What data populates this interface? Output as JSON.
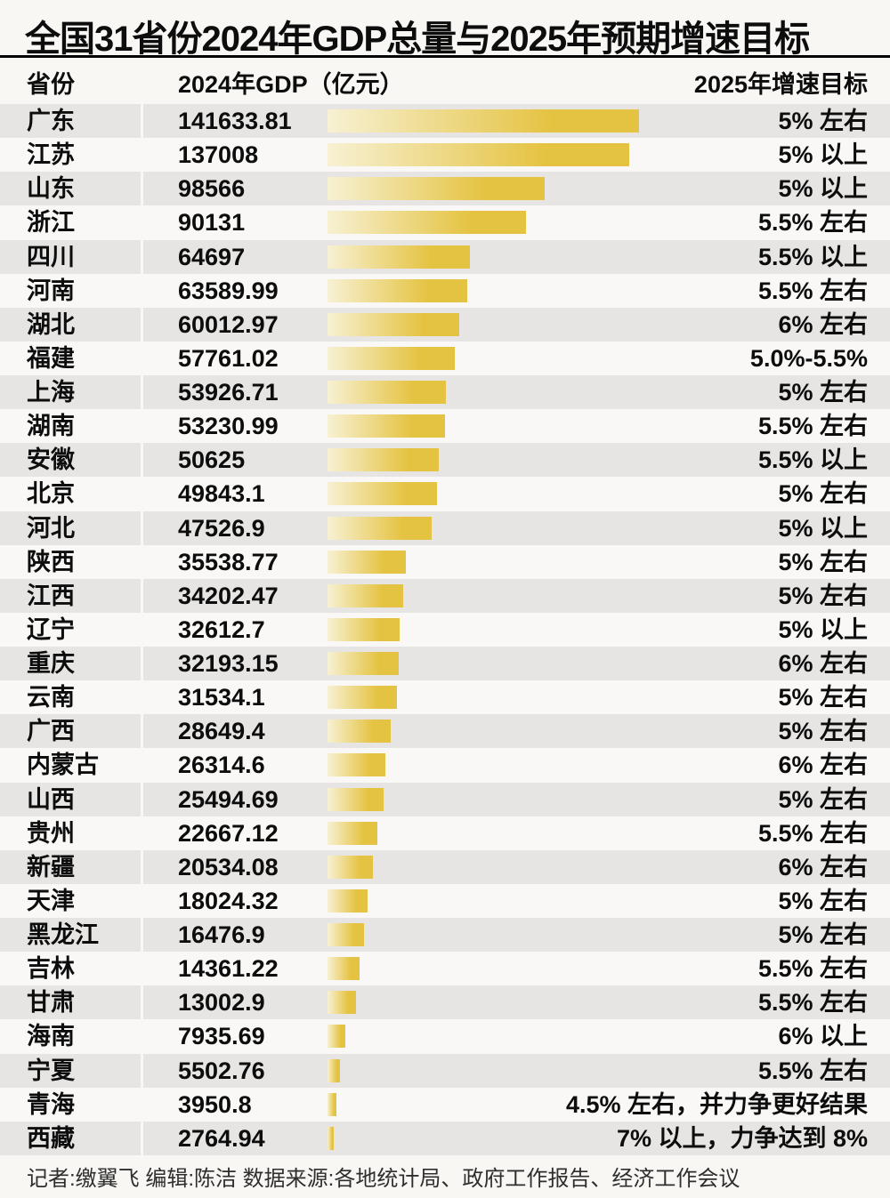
{
  "title": "全国31省份2024年GDP总量与2025年预期增速目标",
  "header": {
    "province": "省份",
    "gdp": "2024年GDP（亿元）",
    "target": "2025年增速目标"
  },
  "footer": {
    "credits": "记者:缴翼飞 编辑:陈洁 数据来源:各地统计局、政府工作报告、经济工作会议"
  },
  "colors": {
    "page_bg": "#F8F7F4",
    "row_odd": "#E6E5E3",
    "row_even": "#F9F8F6",
    "bar_gradient_start": "#F7F1D3",
    "bar_gradient_end": "#E5C342",
    "title_rule": "#000000",
    "text": "#0D0D0D",
    "footer_text": "#2E2E2E"
  },
  "chart_data": {
    "type": "bar",
    "orientation": "horizontal",
    "title": "全国31省份2024年GDP总量与2025年预期增速目标",
    "category_column_label": "省份",
    "value_column_label": "2024年GDP（亿元）",
    "target_column_label": "2025年增速目标",
    "xlim": [
      0,
      141633.81
    ],
    "grid": false,
    "legend": false,
    "categories": [
      "广东",
      "江苏",
      "山东",
      "浙江",
      "四川",
      "河南",
      "湖北",
      "福建",
      "上海",
      "湖南",
      "安徽",
      "北京",
      "河北",
      "陕西",
      "江西",
      "辽宁",
      "重庆",
      "云南",
      "广西",
      "内蒙古",
      "山西",
      "贵州",
      "新疆",
      "天津",
      "黑龙江",
      "吉林",
      "甘肃",
      "海南",
      "宁夏",
      "青海",
      "西藏"
    ],
    "values": [
      141633.81,
      137008,
      98566,
      90131,
      64697,
      63589.99,
      60012.97,
      57761.02,
      53926.71,
      53230.99,
      50625,
      49843.1,
      47526.9,
      35538.77,
      34202.47,
      32612.7,
      32193.15,
      31534.1,
      28649.4,
      26314.6,
      25494.69,
      22667.12,
      20534.08,
      18024.32,
      16476.9,
      14361.22,
      13002.9,
      7935.69,
      5502.76,
      3950.8,
      2764.94
    ],
    "targets": [
      "5% 左右",
      "5% 以上",
      "5% 以上",
      "5.5% 左右",
      "5.5% 以上",
      "5.5% 左右",
      "6% 左右",
      "5.0%-5.5%",
      "5% 左右",
      "5.5% 左右",
      "5.5% 以上",
      "5% 左右",
      "5% 以上",
      "5% 左右",
      "5% 左右",
      "5% 以上",
      "6% 左右",
      "5% 左右",
      "5% 左右",
      "6% 左右",
      "5% 左右",
      "5.5% 左右",
      "6% 左右",
      "5% 左右",
      "5% 左右",
      "5.5% 左右",
      "5.5% 左右",
      "6% 以上",
      "5.5% 左右",
      "4.5% 左右，并力争更好结果",
      "7% 以上，力争达到 8%"
    ]
  }
}
